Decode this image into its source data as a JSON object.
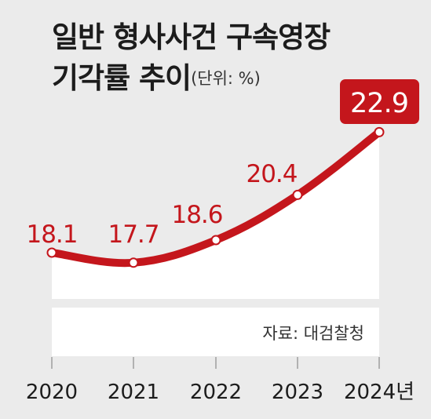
{
  "title_line1": "일반 형사사건 구속영장",
  "title_line2": "기각률 추이",
  "unit": "(단위: %)",
  "source": "자료: 대검찰청",
  "colors": {
    "line": "#c4161c",
    "text_red": "#c4161c",
    "highlight_bg": "#c4161c",
    "area": "#ffffff",
    "background": "#ebebeb"
  },
  "chart_data": {
    "type": "area",
    "title": "일반 형사사건 구속영장 기각률 추이",
    "unit": "%",
    "categories": [
      "2020",
      "2021",
      "2022",
      "2023",
      "2024년"
    ],
    "values": [
      18.1,
      17.7,
      18.6,
      20.4,
      22.9
    ],
    "data_labels": [
      "18.1",
      "17.7",
      "18.6",
      "20.4",
      "22.9"
    ],
    "highlight_last": true,
    "grid": false
  }
}
